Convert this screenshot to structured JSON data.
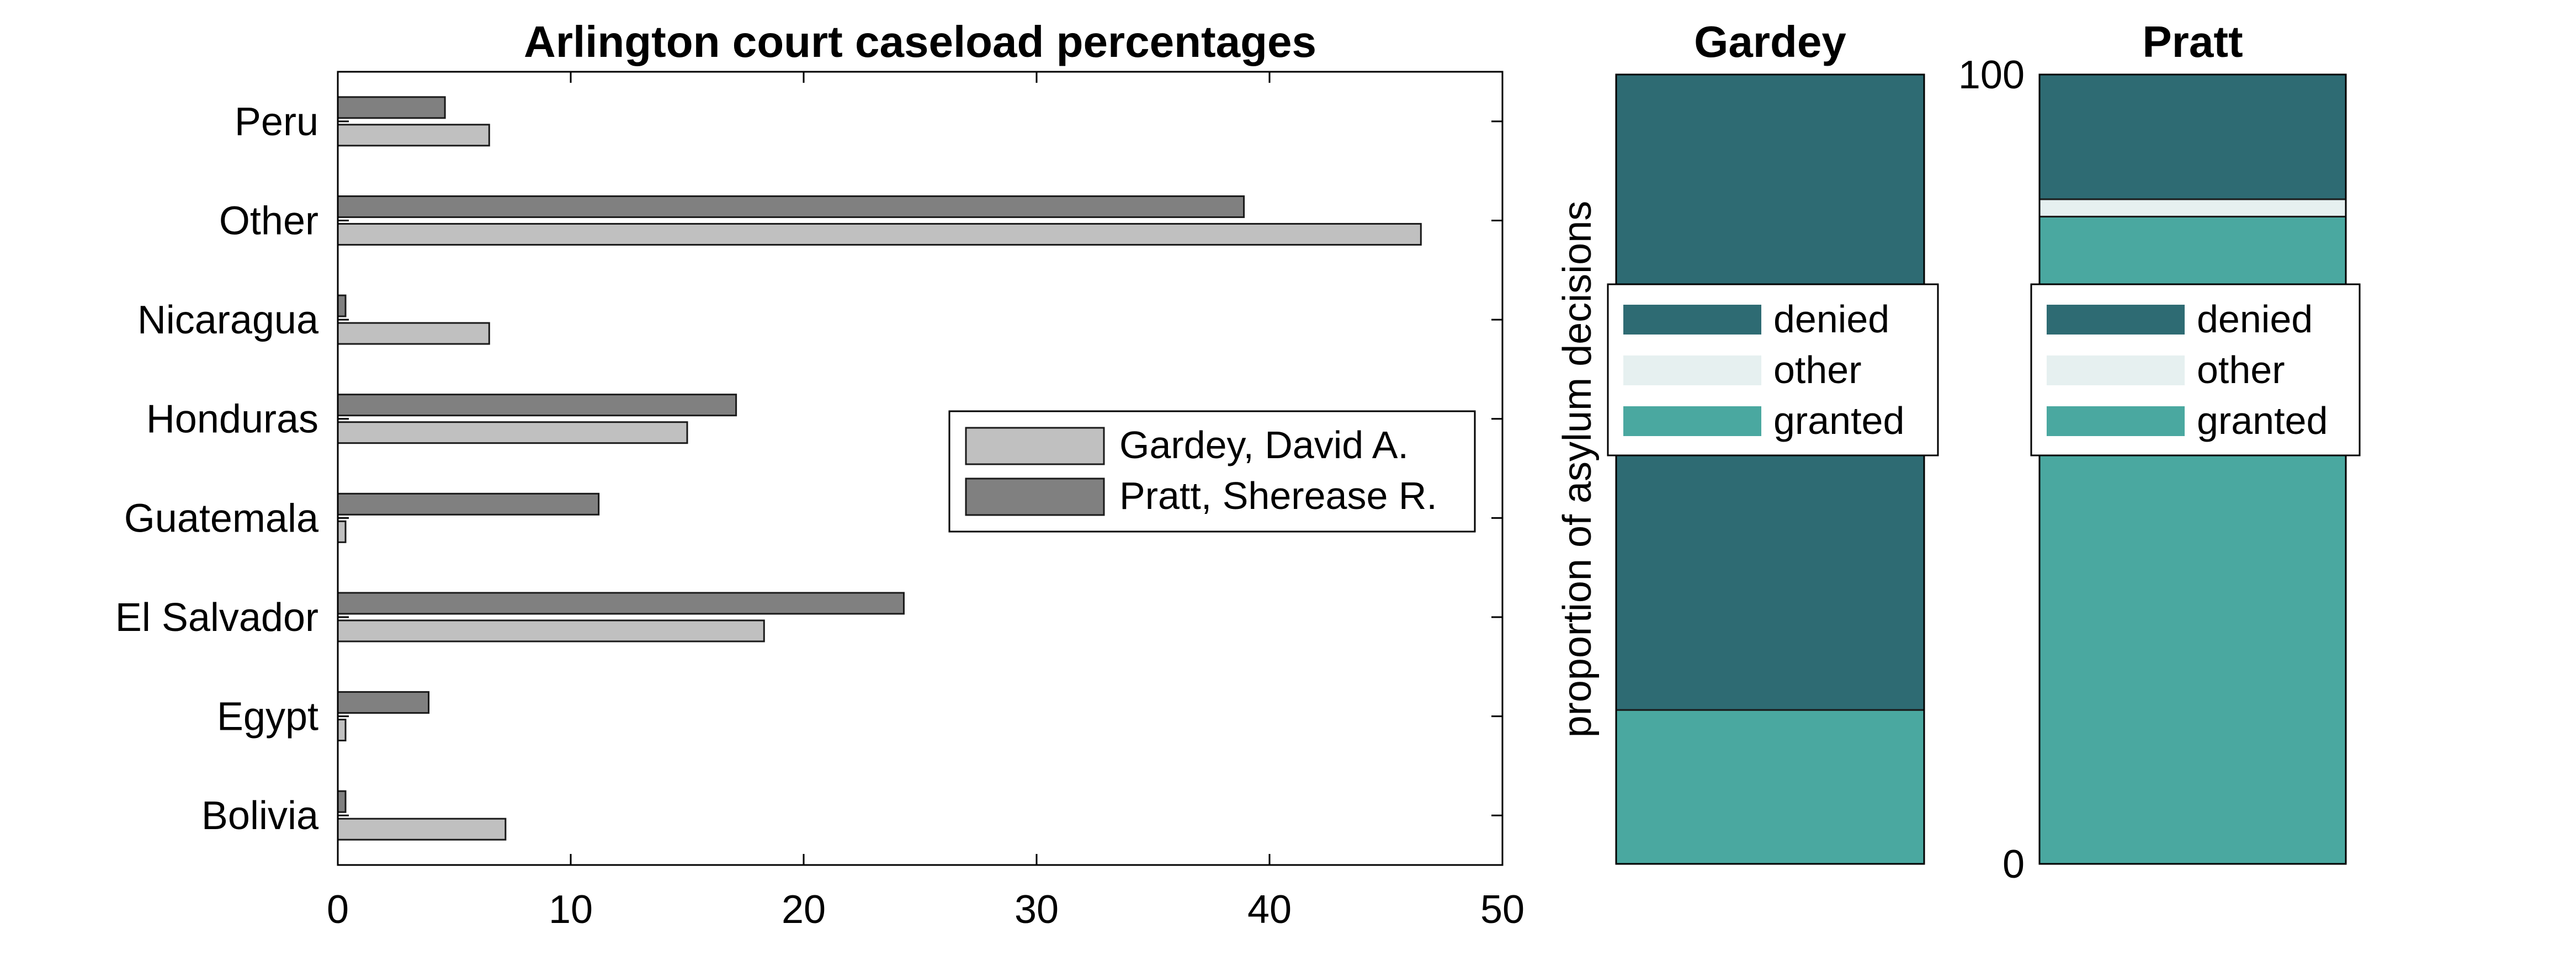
{
  "chart_data": [
    {
      "type": "bar",
      "orientation": "horizontal",
      "title": "Arlington court caseload percentages",
      "xlabel": "",
      "ylabel": "",
      "categories": [
        "Bolivia",
        "Egypt",
        "El Salvador",
        "Guatemala",
        "Honduras",
        "Nicaragua",
        "Other",
        "Peru"
      ],
      "xlim": [
        0,
        50
      ],
      "xticks": [
        0,
        10,
        20,
        30,
        40,
        50
      ],
      "legend_position": "right",
      "grid": false,
      "series": [
        {
          "name": "Gardey, David A.",
          "color": "#c0c0c0",
          "values": [
            7.2,
            0,
            18.3,
            0,
            15.0,
            6.5,
            46.5,
            6.5
          ]
        },
        {
          "name": "Pratt, Sherease R.",
          "color": "#808080",
          "values": [
            0,
            3.9,
            24.3,
            11.2,
            17.1,
            0,
            38.9,
            4.6
          ]
        }
      ]
    },
    {
      "type": "bar",
      "stacked": true,
      "title": "Gardey",
      "ylabel": "proportion of asylum decisions",
      "ylim": [
        0,
        100
      ],
      "legend_position": "center",
      "segments": [
        {
          "name": "granted",
          "color": "#4aa8a0",
          "value": 19.5
        },
        {
          "name": "other",
          "color": "#e6f0f0",
          "value": 0
        },
        {
          "name": "denied",
          "color": "#2e6b73",
          "value": 80.5
        }
      ]
    },
    {
      "type": "bar",
      "stacked": true,
      "title": "Pratt",
      "ylim": [
        0,
        100
      ],
      "yticks": [
        0,
        100
      ],
      "legend_position": "center",
      "segments": [
        {
          "name": "granted",
          "color": "#4aa8a0",
          "value": 82
        },
        {
          "name": "other",
          "color": "#e6f0f0",
          "value": 2.2
        },
        {
          "name": "denied",
          "color": "#2e6b73",
          "value": 15.8
        }
      ]
    }
  ]
}
